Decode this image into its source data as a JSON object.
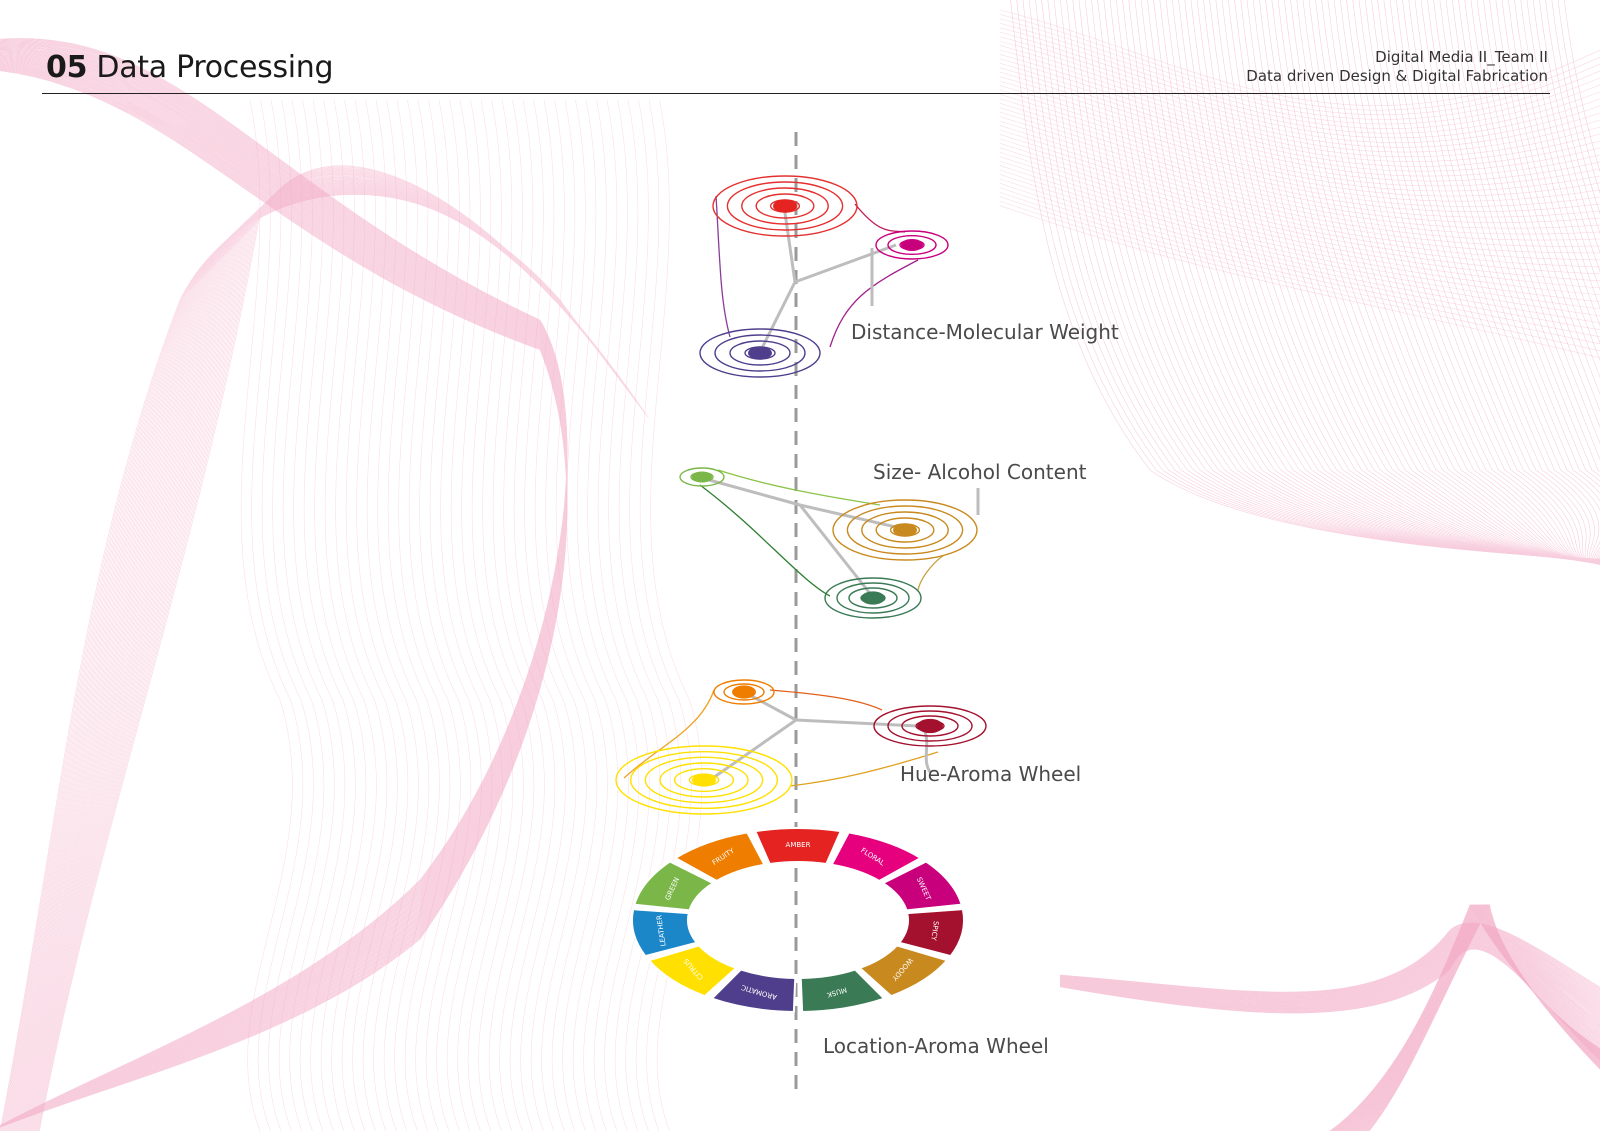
{
  "header": {
    "section_number": "05",
    "section_title": "Data Processing",
    "course": "Digital Media II_Team II",
    "subtitle": "Data driven Design & Digital Fabrication"
  },
  "mappings": [
    {
      "label": "Distance-Molecular Weight"
    },
    {
      "label": "Size- Alcohol Content"
    },
    {
      "label": "Hue-Aroma Wheel"
    },
    {
      "label": "Location-Aroma Wheel"
    }
  ],
  "aroma_wheel": {
    "segments": [
      {
        "name": "AMBER",
        "color": "#e52421"
      },
      {
        "name": "FLORAL",
        "color": "#e6007e"
      },
      {
        "name": "SWEET",
        "color": "#c8007c"
      },
      {
        "name": "SPICY",
        "color": "#a4112e"
      },
      {
        "name": "WOODY",
        "color": "#c88a1e"
      },
      {
        "name": "MUSK",
        "color": "#3a7a55"
      },
      {
        "name": "AROMATIC",
        "color": "#4e3e8c"
      },
      {
        "name": "CITRUS",
        "color": "#ffe000"
      },
      {
        "name": "LEATHER",
        "color": "#1b87c9"
      },
      {
        "name": "GREEN",
        "color": "#7ab648"
      },
      {
        "name": "FRUITY",
        "color": "#ee7d00"
      }
    ]
  },
  "colors": {
    "background_waves": "#f2a7c3",
    "axis_dash": "#9a9a9a",
    "connector": "#bdbdbd"
  }
}
